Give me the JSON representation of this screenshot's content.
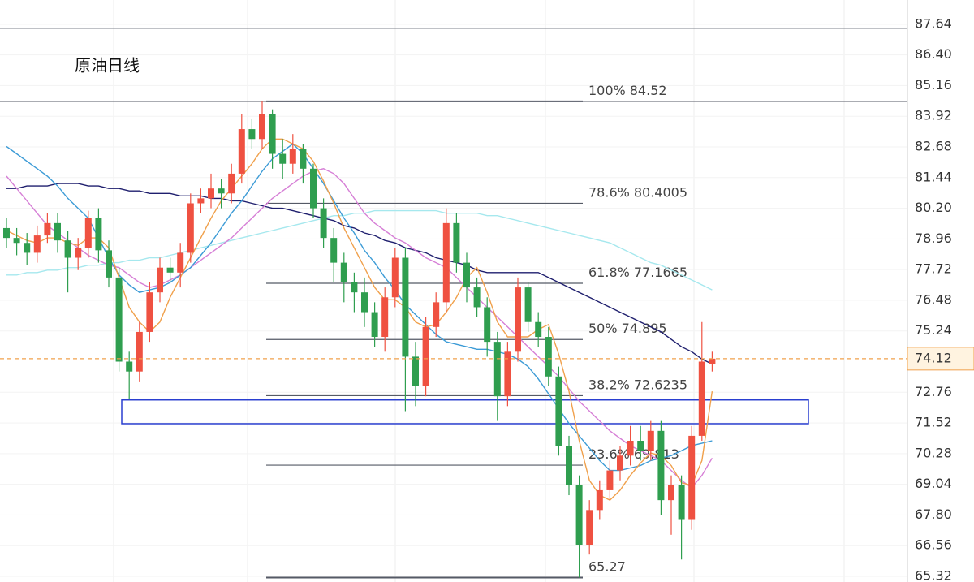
{
  "chart_data": {
    "type": "candlestick",
    "title": "原油日线",
    "up_color": "#ef5141",
    "down_color": "#2f9e4f",
    "open": [
      79.4,
      79.0,
      78.8,
      78.4,
      79.1,
      79.6,
      78.9,
      78.2,
      78.6,
      79.8,
      78.5,
      77.4,
      74.0,
      73.6,
      75.2,
      76.8,
      77.8,
      77.6,
      78.4,
      80.4,
      80.6,
      81.0,
      80.8,
      81.6,
      83.4,
      83.0,
      84.0,
      82.4,
      82.0,
      82.6,
      81.8,
      80.2,
      79.0,
      78.0,
      77.2,
      76.8,
      76.0,
      75.0,
      76.6,
      78.2,
      74.2,
      73.0,
      75.4,
      76.4,
      79.6,
      78.0,
      77.0,
      76.2,
      74.8,
      72.6,
      74.4,
      77.0,
      75.6,
      75.0,
      73.4,
      70.6,
      69.0,
      66.6,
      68.0,
      68.8,
      69.6,
      70.2,
      70.8,
      70.4,
      71.2,
      68.4,
      69.0,
      67.6,
      71.0,
      73.9
    ],
    "high": [
      79.8,
      79.4,
      79.2,
      79.5,
      80.0,
      80.0,
      79.3,
      79.0,
      80.1,
      80.2,
      78.9,
      77.8,
      74.4,
      75.6,
      77.2,
      78.2,
      78.2,
      78.8,
      80.8,
      81.0,
      81.6,
      81.4,
      82.0,
      84.0,
      83.8,
      84.52,
      84.2,
      83.0,
      83.2,
      82.8,
      82.0,
      80.6,
      79.4,
      78.4,
      77.6,
      77.4,
      76.4,
      77.0,
      78.6,
      78.6,
      74.8,
      75.8,
      76.8,
      80.2,
      80.0,
      78.4,
      77.4,
      76.6,
      75.2,
      74.8,
      77.4,
      77.2,
      76.0,
      75.4,
      73.8,
      71.0,
      69.4,
      68.4,
      69.2,
      70.0,
      70.6,
      71.4,
      71.4,
      71.6,
      71.6,
      69.4,
      69.4,
      71.4,
      75.6,
      74.4
    ],
    "low": [
      78.6,
      78.3,
      77.9,
      78.0,
      78.8,
      78.4,
      76.8,
      77.7,
      78.2,
      78.0,
      77.0,
      73.6,
      72.5,
      73.2,
      74.8,
      76.4,
      77.2,
      77.0,
      78.0,
      80.0,
      80.2,
      80.2,
      80.4,
      81.2,
      82.6,
      82.6,
      81.8,
      81.4,
      81.6,
      81.2,
      79.8,
      78.6,
      77.2,
      76.4,
      76.0,
      75.4,
      74.6,
      74.4,
      76.2,
      72.0,
      72.2,
      72.6,
      75.0,
      76.0,
      77.6,
      76.4,
      75.8,
      74.2,
      71.6,
      72.2,
      74.0,
      75.2,
      74.6,
      73.0,
      70.2,
      68.6,
      65.27,
      66.2,
      67.6,
      68.4,
      69.2,
      69.8,
      70.0,
      70.0,
      67.8,
      67.0,
      66.0,
      67.2,
      70.8,
      73.6
    ],
    "close": [
      79.0,
      78.8,
      78.4,
      79.1,
      79.6,
      78.9,
      78.2,
      78.6,
      79.8,
      78.5,
      77.4,
      74.0,
      73.6,
      75.2,
      76.8,
      77.8,
      77.6,
      78.4,
      80.4,
      80.6,
      81.0,
      80.8,
      81.6,
      83.4,
      83.0,
      84.0,
      82.4,
      82.0,
      82.6,
      81.8,
      80.2,
      79.0,
      78.0,
      77.2,
      76.8,
      76.0,
      75.0,
      76.6,
      78.2,
      74.2,
      73.0,
      75.4,
      76.4,
      79.6,
      78.0,
      77.0,
      76.2,
      74.8,
      72.6,
      74.4,
      77.0,
      75.6,
      75.0,
      73.4,
      70.6,
      69.0,
      66.6,
      68.0,
      68.8,
      69.6,
      70.2,
      70.8,
      70.4,
      71.2,
      68.4,
      69.0,
      67.6,
      71.0,
      74.0,
      74.12
    ],
    "series": [
      {
        "color": "#a6e8ee",
        "values": [
          77.5,
          77.5,
          77.6,
          77.6,
          77.7,
          77.7,
          77.8,
          77.8,
          77.9,
          77.9,
          78.0,
          78.0,
          78.1,
          78.1,
          78.2,
          78.2,
          78.3,
          78.4,
          78.5,
          78.6,
          78.7,
          78.8,
          78.9,
          79.0,
          79.1,
          79.2,
          79.3,
          79.4,
          79.5,
          79.6,
          79.7,
          79.8,
          79.9,
          79.9,
          80.0,
          80.0,
          80.1,
          80.1,
          80.1,
          80.1,
          80.1,
          80.1,
          80.1,
          80.0,
          80.0,
          80.0,
          80.0,
          79.9,
          79.9,
          79.8,
          79.7,
          79.6,
          79.5,
          79.4,
          79.3,
          79.2,
          79.1,
          79.0,
          78.9,
          78.8,
          78.6,
          78.4,
          78.2,
          78.0,
          77.9,
          77.7,
          77.5,
          77.3,
          77.1,
          76.9
        ]
      },
      {
        "color": "#1f1f6e",
        "values": [
          81.0,
          81.0,
          81.1,
          81.1,
          81.1,
          81.2,
          81.2,
          81.2,
          81.1,
          81.1,
          81.0,
          81.0,
          80.9,
          80.9,
          80.8,
          80.8,
          80.8,
          80.7,
          80.7,
          80.7,
          80.6,
          80.6,
          80.5,
          80.5,
          80.4,
          80.3,
          80.2,
          80.2,
          80.1,
          80.0,
          79.9,
          79.8,
          79.7,
          79.5,
          79.4,
          79.2,
          79.1,
          78.9,
          78.8,
          78.6,
          78.5,
          78.4,
          78.2,
          78.1,
          78.0,
          77.9,
          77.7,
          77.6,
          77.6,
          77.6,
          77.6,
          77.6,
          77.6,
          77.4,
          77.2,
          77.0,
          76.8,
          76.6,
          76.4,
          76.2,
          76.0,
          75.8,
          75.6,
          75.4,
          75.2,
          74.9,
          74.6,
          74.4,
          74.1,
          73.9
        ]
      },
      {
        "color": "#d67fd6",
        "values": [
          81.5,
          81.0,
          80.5,
          80.0,
          79.5,
          79.2,
          78.9,
          78.6,
          78.3,
          78.1,
          77.9,
          77.8,
          77.5,
          77.2,
          77.0,
          77.1,
          77.3,
          77.5,
          77.8,
          78.1,
          78.4,
          78.7,
          79.0,
          79.4,
          79.8,
          80.2,
          80.6,
          80.9,
          81.2,
          81.5,
          81.7,
          81.8,
          81.6,
          81.2,
          80.6,
          80.0,
          79.6,
          79.3,
          79.0,
          78.8,
          78.5,
          78.2,
          78.0,
          77.8,
          77.4,
          77.0,
          76.6,
          76.2,
          75.8,
          75.4,
          75.0,
          74.6,
          74.2,
          73.8,
          73.4,
          72.9,
          72.4,
          72.0,
          71.6,
          71.2,
          70.9,
          70.6,
          70.4,
          70.2,
          70.0,
          69.6,
          69.2,
          68.9,
          69.4,
          70.1
        ]
      },
      {
        "color": "#3c9bd6",
        "values": [
          82.7,
          82.4,
          82.1,
          81.8,
          81.5,
          81.1,
          80.6,
          80.2,
          79.8,
          79.0,
          78.2,
          77.5,
          77.1,
          76.8,
          76.9,
          77.0,
          77.2,
          77.5,
          77.8,
          78.3,
          78.8,
          79.4,
          80.0,
          80.5,
          81.1,
          81.7,
          82.2,
          82.5,
          82.8,
          82.4,
          81.8,
          81.2,
          80.5,
          79.8,
          79.2,
          78.5,
          78.0,
          77.4,
          76.9,
          76.3,
          75.9,
          75.5,
          75.1,
          74.8,
          74.7,
          74.6,
          74.5,
          74.5,
          74.4,
          74.3,
          74.1,
          73.8,
          73.3,
          72.7,
          72.1,
          71.5,
          71.0,
          70.5,
          70.0,
          69.6,
          69.6,
          69.7,
          69.8,
          70.0,
          70.1,
          70.2,
          70.4,
          70.6,
          70.7,
          70.8
        ]
      },
      {
        "color": "#f0a04b",
        "values": [
          79.3,
          79.1,
          78.9,
          78.8,
          79.0,
          79.0,
          78.8,
          78.7,
          79.0,
          79.0,
          78.6,
          77.4,
          76.2,
          75.6,
          75.2,
          75.6,
          76.6,
          77.4,
          78.2,
          79.0,
          79.8,
          80.5,
          81.0,
          81.5,
          82.0,
          82.6,
          83.0,
          83.0,
          82.8,
          82.6,
          82.1,
          81.3,
          80.4,
          79.4,
          78.6,
          77.8,
          77.0,
          76.5,
          76.5,
          76.2,
          75.6,
          75.4,
          75.5,
          76.0,
          76.6,
          77.4,
          77.8,
          76.8,
          75.6,
          75.0,
          75.0,
          75.0,
          75.3,
          75.5,
          74.3,
          72.8,
          70.8,
          69.2,
          68.6,
          68.4,
          68.8,
          69.4,
          69.9,
          70.3,
          70.2,
          69.8,
          69.1,
          69.0,
          70.0,
          72.8
        ]
      }
    ],
    "fib_levels": [
      {
        "ratio": "100%",
        "price": 84.52
      },
      {
        "ratio": "78.6%",
        "price": 80.4005
      },
      {
        "ratio": "61.8%",
        "price": 77.1665
      },
      {
        "ratio": "50%",
        "price": 74.895
      },
      {
        "ratio": "38.2%",
        "price": 72.6235
      },
      {
        "ratio": "23.6%",
        "price": 69.813
      },
      {
        "price": 65.27
      }
    ],
    "horizontal_lines": [
      87.48,
      84.52
    ],
    "zone": {
      "top": 72.45,
      "bottom": 71.49,
      "color": "#2a3fd0"
    },
    "current_price": 74.12,
    "current_color": "#f0a04b",
    "ylim": [
      65.09,
      88.62
    ],
    "yticks": [
      87.64,
      {
        "value": 86.4,
        "label": "86.40"
      },
      85.16,
      83.92,
      82.68,
      81.44,
      {
        "value": 80.2,
        "label": "80.20"
      },
      78.96,
      77.72,
      76.48,
      75.24,
      72.76,
      71.52,
      70.28,
      69.04,
      {
        "value": 67.8,
        "label": "67.80"
      },
      66.56,
      65.32
    ],
    "grid": true
  }
}
